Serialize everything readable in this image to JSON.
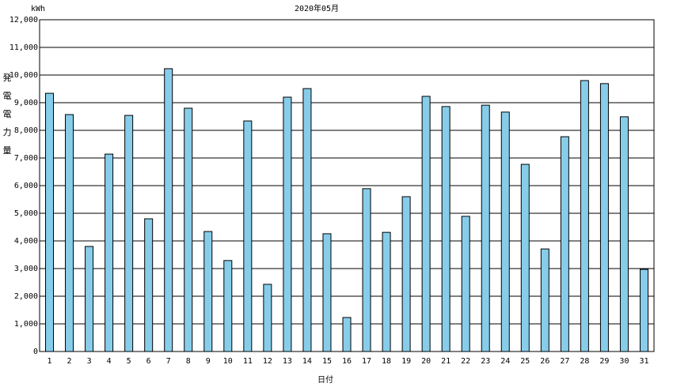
{
  "chart_data": {
    "type": "bar",
    "title": "2020年05月",
    "unit": "kWh",
    "y_label": "発電電力量",
    "x_label": "日付",
    "categories": [
      "1",
      "2",
      "3",
      "4",
      "5",
      "6",
      "7",
      "8",
      "9",
      "10",
      "11",
      "12",
      "13",
      "14",
      "15",
      "16",
      "17",
      "18",
      "19",
      "20",
      "21",
      "22",
      "23",
      "24",
      "25",
      "26",
      "27",
      "28",
      "29",
      "30",
      "31"
    ],
    "values": [
      9340,
      8570,
      3800,
      7140,
      8540,
      4800,
      10230,
      8800,
      4340,
      3290,
      8340,
      2430,
      9200,
      9510,
      4260,
      1230,
      5890,
      4310,
      5600,
      9230,
      8860,
      4890,
      8910,
      8660,
      6770,
      3710,
      7770,
      9800,
      9690,
      8490,
      2970
    ],
    "color": "#87cdea",
    "ylim": [
      0,
      12000
    ],
    "yticks": [
      0,
      {
        "value": 1000,
        "label": "1,000"
      },
      {
        "value": 2000,
        "label": "2,000"
      },
      {
        "value": 3000,
        "label": "3,000"
      },
      {
        "value": 4000,
        "label": "4,000"
      },
      {
        "value": 5000,
        "label": "5,000"
      },
      {
        "value": 6000,
        "label": "6,000"
      },
      {
        "value": 7000,
        "label": "7,000"
      },
      {
        "value": 8000,
        "label": "8,000"
      },
      {
        "value": 9000,
        "label": "9,000"
      },
      {
        "value": 10000,
        "label": "10,000"
      },
      {
        "value": 11000,
        "label": "11,000"
      },
      {
        "value": 12000,
        "label": "12,000"
      }
    ],
    "grid": true
  }
}
